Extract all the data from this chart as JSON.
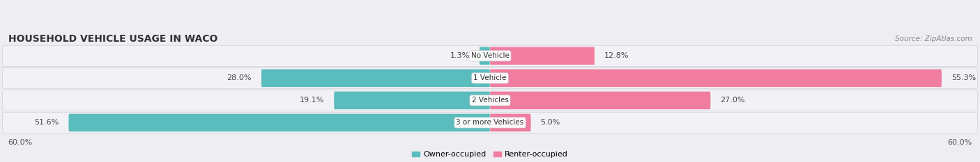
{
  "title": "HOUSEHOLD VEHICLE USAGE IN WACO",
  "source": "Source: ZipAtlas.com",
  "categories": [
    "No Vehicle",
    "1 Vehicle",
    "2 Vehicles",
    "3 or more Vehicles"
  ],
  "owner_values": [
    1.3,
    28.0,
    19.1,
    51.6
  ],
  "renter_values": [
    12.8,
    55.3,
    27.0,
    5.0
  ],
  "owner_color": "#5bbcbe",
  "renter_color": "#f07ca0",
  "axis_max": 60.0,
  "axis_label_left": "60.0%",
  "axis_label_right": "60.0%",
  "legend_owner": "Owner-occupied",
  "legend_renter": "Renter-occupied",
  "background_color": "#ededf2",
  "row_bg_color": "#e8e8ee",
  "row_bg_light": "#f5f5f8",
  "title_fontsize": 10,
  "source_fontsize": 7.5,
  "label_fontsize": 8,
  "category_fontsize": 7.5,
  "axis_tick_fontsize": 8
}
